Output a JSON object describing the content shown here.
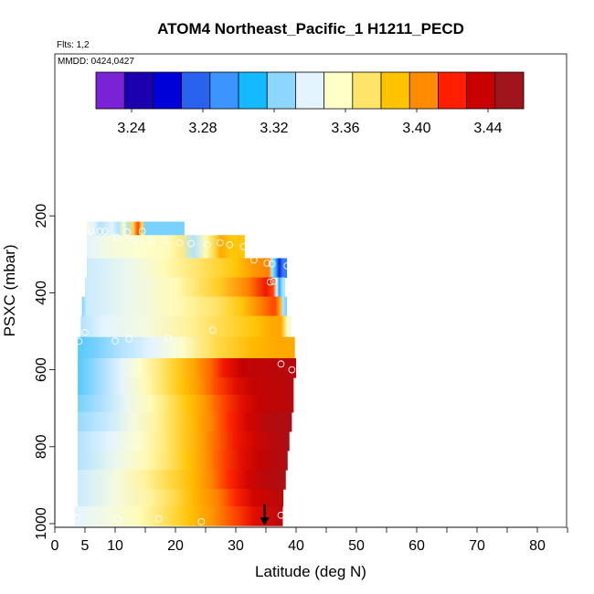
{
  "chart_data": {
    "type": "heatmap",
    "title": "ATOM4 Northeast_Pacific_1 H1211_PECD",
    "subtitle": "Flts: 1,2",
    "annotation": "MMDD: 0424,0427",
    "xlabel": "Latitude (deg N)",
    "ylabel": "PSXC (mbar)",
    "xlim": [
      0,
      85
    ],
    "ylim": [
      1000,
      100
    ],
    "x_ticks": [
      0,
      10,
      20,
      30,
      40,
      50,
      60,
      70,
      80
    ],
    "x_tick_labels": [
      "0",
      "5",
      "10",
      "20",
      "30",
      "40",
      "50",
      "60",
      "70",
      "80"
    ],
    "x_tick_label_values": [
      0,
      5,
      10,
      20,
      30,
      40,
      50,
      60,
      70,
      80
    ],
    "y_ticks": [
      200,
      400,
      600,
      800,
      1000
    ],
    "y_tick_labels": [
      "200",
      "400",
      "600",
      "800",
      "1000"
    ],
    "grid": false,
    "colorbar": {
      "range": [
        3.22,
        3.46
      ],
      "ticks": [
        3.24,
        3.28,
        3.32,
        3.36,
        3.4,
        3.44
      ],
      "tick_labels": [
        "3.24",
        "3.28",
        "3.32",
        "3.36",
        "3.40",
        "3.44"
      ],
      "colors": [
        "#7a22d6",
        "#1c00b0",
        "#0000d8",
        "#2a62f0",
        "#3c95ff",
        "#14b9ff",
        "#8cd6ff",
        "#e4f4ff",
        "#ffffc8",
        "#ffe46a",
        "#ffc300",
        "#ff8c00",
        "#ff1e00",
        "#c80000",
        "#a0151c"
      ]
    },
    "layers": [
      {
        "p_top": 215,
        "p_bot": 250,
        "x_start": 5.3,
        "x_end": 21.5,
        "stops": [
          [
            5.3,
            3.35
          ],
          [
            6.5,
            3.34
          ],
          [
            7.5,
            3.33
          ],
          [
            9.5,
            3.34
          ],
          [
            10.5,
            3.33
          ],
          [
            11.5,
            3.36
          ],
          [
            12,
            3.33
          ],
          [
            13,
            3.38
          ],
          [
            13.8,
            3.42
          ],
          [
            14.4,
            3.38
          ],
          [
            15,
            3.32
          ],
          [
            21.5,
            3.32
          ]
        ]
      },
      {
        "p_top": 250,
        "p_bot": 310,
        "x_start": 5.3,
        "x_end": 31.5,
        "stops": [
          [
            5.3,
            3.34
          ],
          [
            9,
            3.35
          ],
          [
            14,
            3.355
          ],
          [
            19,
            3.36
          ],
          [
            21,
            3.37
          ],
          [
            23,
            3.33
          ],
          [
            25,
            3.36
          ],
          [
            26.5,
            3.38
          ],
          [
            27.5,
            3.4
          ],
          [
            29,
            3.39
          ],
          [
            31.5,
            3.39
          ]
        ]
      },
      {
        "p_top": 310,
        "p_bot": 360,
        "x_start": 5.3,
        "x_end": 38.5,
        "stops": [
          [
            5.3,
            3.335
          ],
          [
            12,
            3.345
          ],
          [
            18,
            3.36
          ],
          [
            24,
            3.375
          ],
          [
            30,
            3.39
          ],
          [
            33,
            3.405
          ],
          [
            35.5,
            3.41
          ],
          [
            36,
            3.33
          ],
          [
            36.6,
            3.31
          ],
          [
            37.2,
            3.26
          ],
          [
            37.8,
            3.28
          ],
          [
            38.5,
            3.28
          ]
        ]
      },
      {
        "p_top": 360,
        "p_bot": 410,
        "x_start": 5.0,
        "x_end": 38.2,
        "stops": [
          [
            5,
            3.335
          ],
          [
            12,
            3.345
          ],
          [
            20,
            3.36
          ],
          [
            27,
            3.385
          ],
          [
            32,
            3.41
          ],
          [
            35,
            3.43
          ],
          [
            36.2,
            3.42
          ],
          [
            36.8,
            3.34
          ],
          [
            37.2,
            3.3
          ],
          [
            37.8,
            3.33
          ],
          [
            38.2,
            3.33
          ]
        ]
      },
      {
        "p_top": 410,
        "p_bot": 460,
        "x_start": 4.5,
        "x_end": 38.5,
        "stops": [
          [
            4.5,
            3.32
          ],
          [
            5.2,
            3.335
          ],
          [
            12,
            3.345
          ],
          [
            20,
            3.36
          ],
          [
            27,
            3.375
          ],
          [
            31,
            3.39
          ],
          [
            34,
            3.41
          ],
          [
            36.5,
            3.42
          ],
          [
            37.3,
            3.4
          ],
          [
            37.8,
            3.33
          ],
          [
            38.5,
            3.32
          ]
        ]
      },
      {
        "p_top": 460,
        "p_bot": 515,
        "x_start": 4.3,
        "x_end": 39.2,
        "stops": [
          [
            4.3,
            3.33
          ],
          [
            8,
            3.34
          ],
          [
            15,
            3.35
          ],
          [
            22,
            3.365
          ],
          [
            28,
            3.38
          ],
          [
            33,
            3.39
          ],
          [
            36,
            3.4
          ],
          [
            37.5,
            3.4
          ],
          [
            38.5,
            3.36
          ],
          [
            39.2,
            3.35
          ]
        ]
      },
      {
        "p_top": 515,
        "p_bot": 570,
        "x_start": 3.8,
        "x_end": 39.8,
        "stops": [
          [
            3.8,
            3.315
          ],
          [
            7,
            3.32
          ],
          [
            11,
            3.33
          ],
          [
            16,
            3.34
          ],
          [
            21,
            3.355
          ],
          [
            27,
            3.38
          ],
          [
            33,
            3.395
          ],
          [
            37,
            3.4
          ],
          [
            39.8,
            3.4
          ]
        ]
      },
      {
        "p_top": 570,
        "p_bot": 620,
        "x_start": 3.8,
        "x_end": 40.0,
        "stops": [
          [
            3.8,
            3.315
          ],
          [
            7,
            3.325
          ],
          [
            11,
            3.34
          ],
          [
            14,
            3.355
          ],
          [
            17,
            3.37
          ],
          [
            20,
            3.385
          ],
          [
            23,
            3.4
          ],
          [
            26,
            3.415
          ],
          [
            28,
            3.43
          ],
          [
            31,
            3.445
          ],
          [
            40,
            3.45
          ]
        ]
      },
      {
        "p_top": 620,
        "p_bot": 665,
        "x_start": 3.8,
        "x_end": 39.6,
        "stops": [
          [
            3.8,
            3.315
          ],
          [
            7,
            3.325
          ],
          [
            11,
            3.34
          ],
          [
            15,
            3.36
          ],
          [
            18,
            3.375
          ],
          [
            21,
            3.39
          ],
          [
            24,
            3.405
          ],
          [
            27,
            3.42
          ],
          [
            30,
            3.435
          ],
          [
            33,
            3.445
          ],
          [
            39.6,
            3.45
          ]
        ]
      },
      {
        "p_top": 665,
        "p_bot": 710,
        "x_start": 3.8,
        "x_end": 39.6,
        "stops": [
          [
            3.8,
            3.32
          ],
          [
            8,
            3.33
          ],
          [
            12,
            3.345
          ],
          [
            16,
            3.36
          ],
          [
            19,
            3.375
          ],
          [
            22,
            3.39
          ],
          [
            25,
            3.405
          ],
          [
            28,
            3.42
          ],
          [
            31,
            3.435
          ],
          [
            34,
            3.445
          ],
          [
            39.6,
            3.45
          ]
        ]
      },
      {
        "p_top": 710,
        "p_bot": 760,
        "x_start": 3.8,
        "x_end": 39.3,
        "stops": [
          [
            3.8,
            3.325
          ],
          [
            9,
            3.335
          ],
          [
            13,
            3.35
          ],
          [
            17,
            3.365
          ],
          [
            20,
            3.38
          ],
          [
            23,
            3.395
          ],
          [
            26,
            3.41
          ],
          [
            29,
            3.425
          ],
          [
            32,
            3.44
          ],
          [
            35,
            3.45
          ],
          [
            39.3,
            3.455
          ]
        ]
      },
      {
        "p_top": 760,
        "p_bot": 810,
        "x_start": 3.8,
        "x_end": 38.9,
        "stops": [
          [
            3.8,
            3.33
          ],
          [
            9,
            3.34
          ],
          [
            14,
            3.355
          ],
          [
            18,
            3.37
          ],
          [
            21,
            3.385
          ],
          [
            24,
            3.4
          ],
          [
            27,
            3.415
          ],
          [
            30,
            3.43
          ],
          [
            33,
            3.44
          ],
          [
            36,
            3.45
          ],
          [
            38.9,
            3.455
          ]
        ]
      },
      {
        "p_top": 810,
        "p_bot": 860,
        "x_start": 3.8,
        "x_end": 38.6,
        "stops": [
          [
            3.8,
            3.33
          ],
          [
            10,
            3.345
          ],
          [
            15,
            3.36
          ],
          [
            19,
            3.375
          ],
          [
            22,
            3.39
          ],
          [
            25,
            3.405
          ],
          [
            28,
            3.42
          ],
          [
            31,
            3.435
          ],
          [
            34,
            3.445
          ],
          [
            38.6,
            3.455
          ]
        ]
      },
      {
        "p_top": 860,
        "p_bot": 910,
        "x_start": 3.8,
        "x_end": 38.3,
        "stops": [
          [
            3.8,
            3.335
          ],
          [
            10,
            3.35
          ],
          [
            15,
            3.365
          ],
          [
            19,
            3.38
          ],
          [
            23,
            3.395
          ],
          [
            26,
            3.41
          ],
          [
            29,
            3.425
          ],
          [
            32,
            3.44
          ],
          [
            35,
            3.45
          ],
          [
            38.3,
            3.455
          ]
        ]
      },
      {
        "p_top": 910,
        "p_bot": 955,
        "x_start": 3.8,
        "x_end": 37.9,
        "stops": [
          [
            3.8,
            3.335
          ],
          [
            10,
            3.35
          ],
          [
            16,
            3.365
          ],
          [
            20,
            3.38
          ],
          [
            23,
            3.395
          ],
          [
            27,
            3.41
          ],
          [
            30,
            3.425
          ],
          [
            33,
            3.44
          ],
          [
            37.9,
            3.45
          ]
        ]
      },
      {
        "p_top": 955,
        "p_bot": 1005,
        "x_start": 3.3,
        "x_end": 37.8,
        "stops": [
          [
            3.3,
            3.34
          ],
          [
            9,
            3.35
          ],
          [
            14,
            3.36
          ],
          [
            18,
            3.375
          ],
          [
            22,
            3.39
          ],
          [
            26,
            3.405
          ],
          [
            30,
            3.42
          ],
          [
            33,
            3.435
          ],
          [
            37.8,
            3.45
          ]
        ]
      }
    ],
    "sample_points": [
      {
        "lat": 6.0,
        "p": 240
      },
      {
        "lat": 7.5,
        "p": 240
      },
      {
        "lat": 8.3,
        "p": 240
      },
      {
        "lat": 12.0,
        "p": 242
      },
      {
        "lat": 14.5,
        "p": 240
      },
      {
        "lat": 10.2,
        "p": 255
      },
      {
        "lat": 13.2,
        "p": 262
      },
      {
        "lat": 16.0,
        "p": 265
      },
      {
        "lat": 18.3,
        "p": 263
      },
      {
        "lat": 20.7,
        "p": 270
      },
      {
        "lat": 22.6,
        "p": 272
      },
      {
        "lat": 25.3,
        "p": 275
      },
      {
        "lat": 27.4,
        "p": 270
      },
      {
        "lat": 29.0,
        "p": 275
      },
      {
        "lat": 31.3,
        "p": 280
      },
      {
        "lat": 33.0,
        "p": 315
      },
      {
        "lat": 35.2,
        "p": 323
      },
      {
        "lat": 36.0,
        "p": 325
      },
      {
        "lat": 38.5,
        "p": 330
      },
      {
        "lat": 35.7,
        "p": 372
      },
      {
        "lat": 36.3,
        "p": 370
      },
      {
        "lat": 5.0,
        "p": 503
      },
      {
        "lat": 26.2,
        "p": 497
      },
      {
        "lat": 4.0,
        "p": 526
      },
      {
        "lat": 10.0,
        "p": 525
      },
      {
        "lat": 12.3,
        "p": 520
      },
      {
        "lat": 18.8,
        "p": 517
      },
      {
        "lat": 37.5,
        "p": 585
      },
      {
        "lat": 39.3,
        "p": 600
      },
      {
        "lat": 3.7,
        "p": 985
      },
      {
        "lat": 10.4,
        "p": 988
      },
      {
        "lat": 17.2,
        "p": 988
      },
      {
        "lat": 24.3,
        "p": 995
      },
      {
        "lat": 37.5,
        "p": 978
      }
    ],
    "arrow": {
      "lat": 34.8,
      "p_from": 950,
      "p_to": 1005
    }
  }
}
